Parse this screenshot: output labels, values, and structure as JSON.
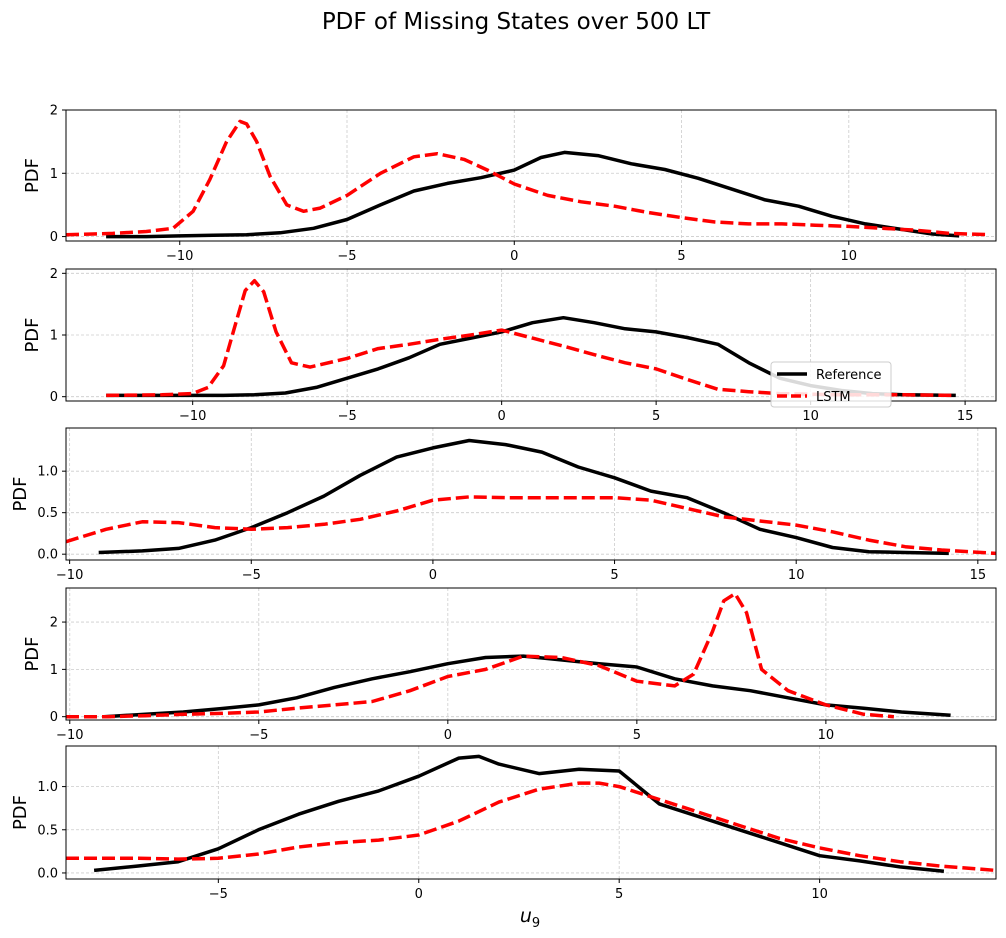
{
  "figure": {
    "title": "PDF of Missing States over 500 LT",
    "xlabel_base": "u",
    "xlabel_sub": "9",
    "legend": {
      "entries": [
        "Reference",
        "LSTM"
      ],
      "placement": "panel 2, lower right"
    },
    "colors": {
      "reference": "#000000",
      "lstm": "#ff0000",
      "grid": "#cccccc"
    }
  },
  "chart_data": [
    {
      "type": "line",
      "ylabel": "PDF",
      "xlim": [
        -13.4,
        14.4
      ],
      "ylim": [
        -0.07,
        2.0
      ],
      "xticks": [
        -10,
        -5,
        0,
        5,
        10
      ],
      "xtick_labels": [
        "−10",
        "−5",
        "0",
        "5",
        "10"
      ],
      "yticks": [
        0,
        1,
        2
      ],
      "ytick_labels": [
        "0",
        "1",
        "2"
      ],
      "grid": true,
      "series": [
        {
          "name": "Reference",
          "style": "solid",
          "x": [
            -12.2,
            -11,
            -10,
            -9,
            -8,
            -7,
            -6,
            -5,
            -4,
            -3,
            -2,
            -1,
            0,
            0.8,
            1.5,
            2.5,
            3.5,
            4.5,
            5.5,
            6.5,
            7.5,
            8.5,
            9.5,
            10.5,
            11.5,
            12.5,
            13.3
          ],
          "y": [
            0.0,
            0.0,
            0.01,
            0.02,
            0.03,
            0.06,
            0.13,
            0.27,
            0.5,
            0.72,
            0.84,
            0.93,
            1.05,
            1.25,
            1.33,
            1.28,
            1.15,
            1.06,
            0.92,
            0.75,
            0.58,
            0.48,
            0.32,
            0.2,
            0.12,
            0.04,
            0.01
          ]
        },
        {
          "name": "LSTM",
          "style": "dashed",
          "x": [
            -13.4,
            -12,
            -11,
            -10.2,
            -9.6,
            -9.1,
            -8.6,
            -8.2,
            -8.0,
            -7.7,
            -7.3,
            -6.8,
            -6.3,
            -5.8,
            -5,
            -4,
            -3,
            -2.3,
            -1.5,
            -0.8,
            0,
            1,
            2,
            3,
            4,
            5,
            6,
            7,
            8,
            9,
            10,
            11,
            12,
            13,
            14.2
          ],
          "y": [
            0.03,
            0.05,
            0.08,
            0.13,
            0.4,
            0.9,
            1.5,
            1.82,
            1.78,
            1.5,
            0.95,
            0.5,
            0.4,
            0.45,
            0.65,
            1.0,
            1.26,
            1.31,
            1.22,
            1.05,
            0.83,
            0.65,
            0.55,
            0.48,
            0.38,
            0.3,
            0.23,
            0.2,
            0.2,
            0.18,
            0.16,
            0.13,
            0.1,
            0.05,
            0.03
          ]
        }
      ]
    },
    {
      "type": "line",
      "ylabel": "PDF",
      "xlim": [
        -14.1,
        16.0
      ],
      "ylim": [
        -0.07,
        2.07
      ],
      "xticks": [
        -10,
        -5,
        0,
        5,
        10,
        15
      ],
      "xtick_labels": [
        "−10",
        "−5",
        "0",
        "5",
        "10",
        "15"
      ],
      "yticks": [
        0,
        1,
        2
      ],
      "ytick_labels": [
        "0",
        "1",
        "2"
      ],
      "grid": true,
      "series": [
        {
          "name": "Reference",
          "style": "solid",
          "x": [
            -12.8,
            -11,
            -10,
            -9,
            -8,
            -7,
            -6,
            -5,
            -4,
            -3,
            -2,
            -1,
            0,
            1,
            2,
            3,
            4,
            5,
            6,
            7,
            8,
            9,
            10,
            11,
            12,
            13,
            14.7
          ],
          "y": [
            0.02,
            0.02,
            0.02,
            0.02,
            0.03,
            0.06,
            0.15,
            0.3,
            0.45,
            0.63,
            0.85,
            0.95,
            1.05,
            1.2,
            1.28,
            1.2,
            1.1,
            1.05,
            0.96,
            0.85,
            0.55,
            0.3,
            0.18,
            0.1,
            0.05,
            0.03,
            0.02
          ]
        },
        {
          "name": "LSTM",
          "style": "dashed",
          "x": [
            -12.8,
            -11,
            -10,
            -9.5,
            -9,
            -8.6,
            -8.3,
            -8.0,
            -7.7,
            -7.3,
            -6.8,
            -6.2,
            -5,
            -4,
            -3,
            -2,
            -1,
            0,
            1,
            2,
            3,
            4,
            5,
            6,
            7,
            8,
            9,
            10,
            11,
            12,
            13,
            14.7
          ],
          "y": [
            0.02,
            0.03,
            0.05,
            0.15,
            0.5,
            1.2,
            1.72,
            1.88,
            1.7,
            1.05,
            0.55,
            0.48,
            0.62,
            0.78,
            0.85,
            0.93,
            1.0,
            1.08,
            0.95,
            0.82,
            0.68,
            0.55,
            0.45,
            0.28,
            0.12,
            0.08,
            0.05,
            0.04,
            0.03,
            0.03,
            0.03,
            0.02
          ]
        }
      ]
    },
    {
      "type": "line",
      "ylabel": "PDF",
      "xlim": [
        -10.1,
        15.5
      ],
      "ylim": [
        -0.07,
        1.52
      ],
      "xticks": [
        -10,
        -5,
        0,
        5,
        10,
        15
      ],
      "xtick_labels": [
        "−10",
        "−5",
        "0",
        "5",
        "10",
        "15"
      ],
      "yticks": [
        0,
        0.5,
        1
      ],
      "ytick_labels": [
        "0.0",
        "0.5",
        "1.0"
      ],
      "grid": true,
      "series": [
        {
          "name": "Reference",
          "style": "solid",
          "x": [
            -9.2,
            -8,
            -7,
            -6,
            -5,
            -4,
            -3,
            -2,
            -1,
            0,
            1,
            2,
            3,
            4,
            5,
            6,
            7,
            8,
            9,
            10,
            11,
            12,
            13,
            14.2
          ],
          "y": [
            0.02,
            0.04,
            0.07,
            0.17,
            0.32,
            0.5,
            0.7,
            0.95,
            1.17,
            1.28,
            1.37,
            1.32,
            1.23,
            1.05,
            0.92,
            0.76,
            0.68,
            0.5,
            0.3,
            0.2,
            0.08,
            0.03,
            0.02,
            0.01
          ]
        },
        {
          "name": "LSTM",
          "style": "dashed",
          "x": [
            -10.1,
            -9,
            -8,
            -7,
            -6,
            -5,
            -4,
            -3,
            -2,
            -1,
            0,
            1,
            2,
            3,
            4,
            5,
            6,
            7,
            8,
            9,
            10,
            11,
            12,
            13,
            14,
            15.5
          ],
          "y": [
            0.15,
            0.3,
            0.39,
            0.38,
            0.32,
            0.3,
            0.32,
            0.36,
            0.42,
            0.52,
            0.65,
            0.69,
            0.68,
            0.68,
            0.68,
            0.68,
            0.65,
            0.55,
            0.45,
            0.4,
            0.35,
            0.27,
            0.17,
            0.09,
            0.05,
            0.01
          ]
        }
      ]
    },
    {
      "type": "line",
      "ylabel": "PDF",
      "xlim": [
        -10.1,
        14.5
      ],
      "ylim": [
        -0.07,
        2.72
      ],
      "xticks": [
        -10,
        -5,
        0,
        5,
        10
      ],
      "xtick_labels": [
        "−10",
        "−5",
        "0",
        "5",
        "10"
      ],
      "yticks": [
        0,
        1,
        2
      ],
      "ytick_labels": [
        "0",
        "1",
        "2"
      ],
      "grid": true,
      "series": [
        {
          "name": "Reference",
          "style": "solid",
          "x": [
            -9.1,
            -8,
            -7,
            -6,
            -5,
            -4,
            -3,
            -2,
            -1,
            0,
            1,
            2,
            3,
            4,
            5,
            6,
            7,
            8,
            9,
            10,
            11,
            12,
            13.3
          ],
          "y": [
            0.0,
            0.05,
            0.1,
            0.17,
            0.25,
            0.4,
            0.62,
            0.8,
            0.95,
            1.12,
            1.25,
            1.28,
            1.2,
            1.12,
            1.05,
            0.8,
            0.65,
            0.55,
            0.4,
            0.25,
            0.18,
            0.1,
            0.03
          ]
        },
        {
          "name": "LSTM",
          "style": "dashed",
          "x": [
            -10.1,
            -9,
            -8,
            -7,
            -6,
            -5,
            -4,
            -3,
            -2,
            -1,
            0,
            1,
            2,
            3,
            4,
            5,
            6,
            6.5,
            7,
            7.3,
            7.6,
            7.9,
            8.3,
            9,
            10,
            11,
            11.8
          ],
          "y": [
            0.0,
            0.0,
            0.02,
            0.05,
            0.07,
            0.1,
            0.18,
            0.25,
            0.32,
            0.55,
            0.85,
            1.0,
            1.28,
            1.25,
            1.08,
            0.75,
            0.65,
            0.9,
            1.8,
            2.45,
            2.6,
            2.2,
            1.0,
            0.55,
            0.25,
            0.05,
            0.0
          ]
        }
      ]
    },
    {
      "type": "line",
      "ylabel": "PDF",
      "xlim": [
        -8.8,
        14.4
      ],
      "ylim": [
        -0.07,
        1.47
      ],
      "xticks": [
        -5,
        0,
        5,
        10
      ],
      "xtick_labels": [
        "−5",
        "0",
        "5",
        "10"
      ],
      "yticks": [
        0,
        0.5,
        1
      ],
      "ytick_labels": [
        "0.0",
        "0.5",
        "1.0"
      ],
      "grid": true,
      "series": [
        {
          "name": "Reference",
          "style": "solid",
          "x": [
            -8.1,
            -7,
            -6,
            -5,
            -4,
            -3,
            -2,
            -1,
            0,
            1,
            1.5,
            2,
            3,
            4,
            5,
            6,
            7,
            8,
            9,
            10,
            11,
            12,
            13.1
          ],
          "y": [
            0.03,
            0.08,
            0.13,
            0.28,
            0.5,
            0.68,
            0.83,
            0.95,
            1.12,
            1.33,
            1.35,
            1.26,
            1.15,
            1.2,
            1.18,
            0.8,
            0.65,
            0.5,
            0.35,
            0.2,
            0.14,
            0.07,
            0.02
          ]
        },
        {
          "name": "LSTM",
          "style": "dashed",
          "x": [
            -8.8,
            -7,
            -6,
            -5,
            -4,
            -3,
            -2,
            -1,
            0,
            1,
            2,
            3,
            4,
            4.5,
            5,
            6,
            7,
            8,
            9,
            10,
            11,
            12,
            13,
            14.4
          ],
          "y": [
            0.17,
            0.17,
            0.16,
            0.17,
            0.22,
            0.3,
            0.35,
            0.38,
            0.44,
            0.6,
            0.82,
            0.97,
            1.04,
            1.04,
            1.0,
            0.85,
            0.7,
            0.55,
            0.4,
            0.29,
            0.2,
            0.13,
            0.08,
            0.03
          ]
        }
      ]
    }
  ]
}
